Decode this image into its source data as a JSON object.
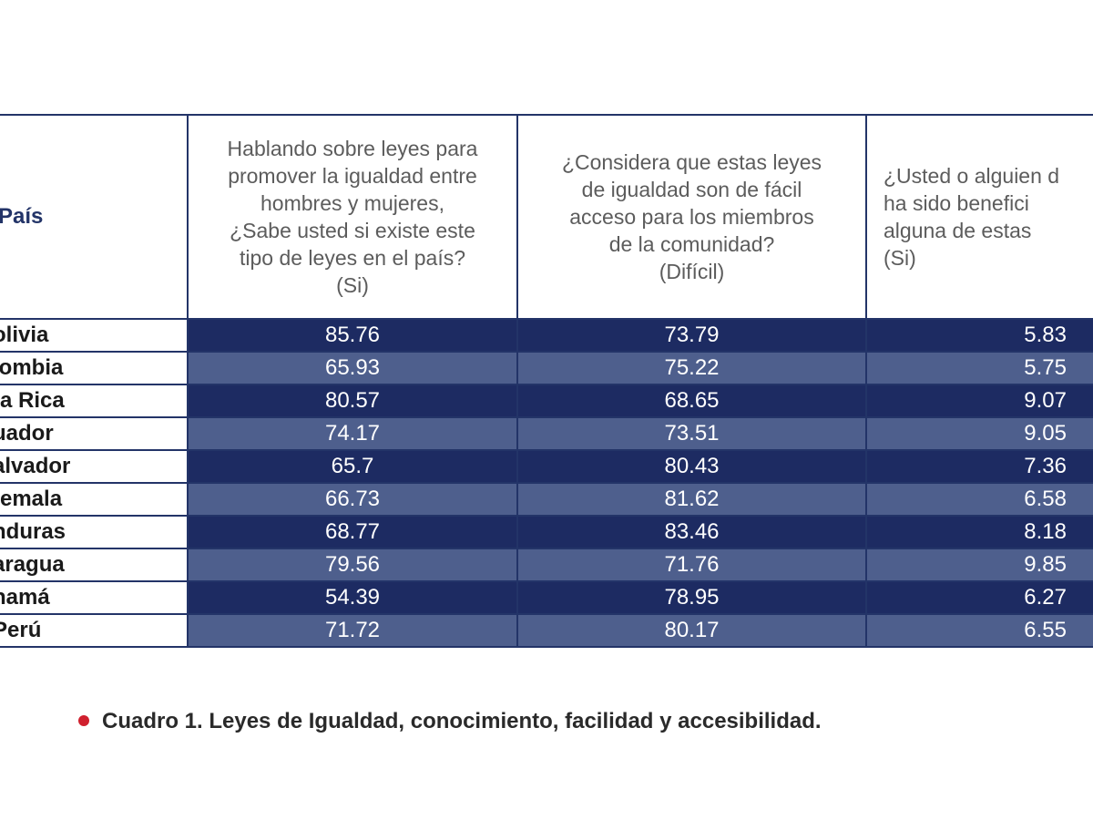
{
  "table": {
    "headers": {
      "country": "País",
      "q1": [
        "Hablando sobre leyes para",
        "promover la igualdad entre",
        "hombres y mujeres,",
        "¿Sabe usted si existe este",
        "tipo de leyes en el país?",
        "(Si)"
      ],
      "q2": [
        "¿Considera que estas leyes",
        "de igualdad son de fácil",
        "acceso para los miembros",
        "de la comunidad?",
        "(Difícil)"
      ],
      "q3": [
        "¿Usted o alguien d",
        "ha sido benefici",
        "alguna de estas",
        "(Si)"
      ]
    },
    "rows": [
      {
        "country": "olivia",
        "q1": "85.76",
        "q2": "73.79",
        "q3": "5.83"
      },
      {
        "country": "lombia",
        "q1": "65.93",
        "q2": "75.22",
        "q3": "5.75"
      },
      {
        "country": "ta Rica",
        "q1": "80.57",
        "q2": "68.65",
        "q3": "9.07"
      },
      {
        "country": "uador",
        "q1": "74.17",
        "q2": "73.51",
        "q3": "9.05"
      },
      {
        "country": "alvador",
        "q1": "65.7",
        "q2": "80.43",
        "q3": "7.36"
      },
      {
        "country": "temala",
        "q1": "66.73",
        "q2": "81.62",
        "q3": "6.58"
      },
      {
        "country": "nduras",
        "q1": "68.77",
        "q2": "83.46",
        "q3": "8.18"
      },
      {
        "country": "aragua",
        "q1": "79.56",
        "q2": "71.76",
        "q3": "9.85"
      },
      {
        "country": "namá",
        "q1": "54.39",
        "q2": "78.95",
        "q3": "6.27"
      },
      {
        "country": "Perú",
        "q1": "71.72",
        "q2": "80.17",
        "q3": "6.55"
      }
    ]
  },
  "caption": "Cuadro 1. Leyes de Igualdad, conocimiento, facilidad y accesibilidad.",
  "colors": {
    "header_rule": "#233468",
    "row_dark": "#1d2b62",
    "row_light": "#4e5f8d",
    "caption_bullet": "#d0202e"
  }
}
